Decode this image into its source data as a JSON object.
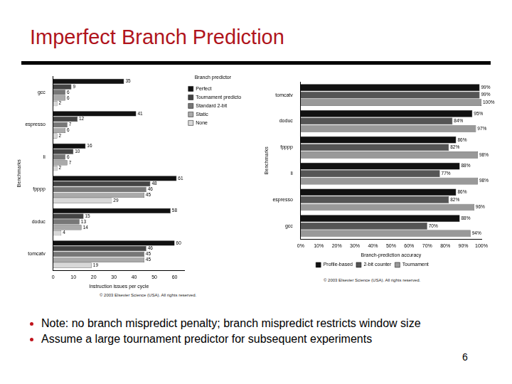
{
  "slide": {
    "title": "Imperfect Branch Prediction",
    "bullets": [
      "Note: no branch mispredict penalty; branch mispredict restricts window size",
      "Assume a large tournament predictor for subsequent experiments"
    ],
    "page_number": "6"
  },
  "chart_data": [
    {
      "type": "bar",
      "orientation": "horizontal",
      "ylabel": "Benchmarks",
      "xlabel": "Instruction issues per cycle",
      "categories": [
        "gcc",
        "espresso",
        "li",
        "fpppp",
        "doduc",
        "tomcatv"
      ],
      "series": [
        {
          "name": "Perfect",
          "color": "#111111",
          "values": [
            35,
            41,
            16,
            61,
            58,
            60
          ]
        },
        {
          "name": "Tournament predictor",
          "color": "#444444",
          "values": [
            9,
            12,
            10,
            48,
            15,
            46
          ]
        },
        {
          "name": "Standard 2-bit",
          "color": "#777777",
          "values": [
            6,
            7,
            6,
            46,
            13,
            45
          ]
        },
        {
          "name": "Static",
          "color": "#aaaaaa",
          "values": [
            6,
            6,
            7,
            45,
            14,
            45
          ]
        },
        {
          "name": "None",
          "color": "#d8d8d8",
          "values": [
            2,
            2,
            2,
            29,
            4,
            19
          ]
        }
      ],
      "xlim": [
        0,
        65
      ],
      "xticks": [
        0,
        10,
        20,
        30,
        40,
        50,
        60
      ],
      "grid": false,
      "legend": "right",
      "legend_title": "Branch predictor",
      "data_labels": true,
      "annotations": [
        "© 2003 Elsevier Science (USA). All rights reserved."
      ]
    },
    {
      "type": "bar",
      "orientation": "horizontal",
      "ylabel": "Benchmarks",
      "xlabel": "Branch-prediction accuracy",
      "categories": [
        "tomcatv",
        "doduc",
        "fpppp",
        "li",
        "espresso",
        "gcc"
      ],
      "series": [
        {
          "name": "Profile-based",
          "color": "#111111",
          "values": [
            99,
            95,
            86,
            88,
            86,
            88
          ],
          "value_labels": [
            "99%",
            "95%",
            "86%",
            "88%",
            "86%",
            "88%"
          ]
        },
        {
          "name": "2-bit counter",
          "color": "#555555",
          "values": [
            99,
            84,
            82,
            77,
            82,
            70
          ],
          "value_labels": [
            "99%",
            "84%",
            "82%",
            "77%",
            "82%",
            "70%"
          ]
        },
        {
          "name": "Tournament",
          "color": "#999999",
          "values": [
            100,
            97,
            98,
            98,
            96,
            94
          ],
          "value_labels": [
            "100%",
            "97%",
            "98%",
            "98%",
            "96%",
            "94%"
          ]
        }
      ],
      "xlim": [
        0,
        100
      ],
      "xticks": [
        {
          "value": 0,
          "label": "0%"
        },
        {
          "value": 10,
          "label": "10%"
        },
        {
          "value": 20,
          "label": "20%"
        },
        {
          "value": 30,
          "label": "30%"
        },
        {
          "value": 40,
          "label": "40%"
        },
        {
          "value": 50,
          "label": "50%"
        },
        {
          "value": 60,
          "label": "60%"
        },
        {
          "value": 70,
          "label": "70%"
        },
        {
          "value": 80,
          "label": "80%"
        },
        {
          "value": 90,
          "label": "90%"
        },
        {
          "value": 100,
          "label": "100%"
        }
      ],
      "grid": false,
      "legend": "bottom",
      "data_labels": true,
      "annotations": [
        "© 2003 Elsevier Science (USA). All rights reserved."
      ]
    }
  ]
}
